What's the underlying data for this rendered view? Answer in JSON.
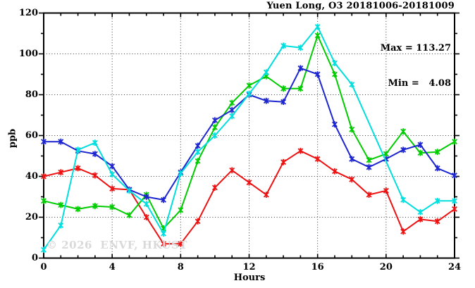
{
  "title": "Yuen Long, O3 20181006-20181009",
  "annotation": {
    "max_label": "Max = 113.27",
    "min_label": "Min =   4.08"
  },
  "watermark": "© 2026  ENVF, HKUST",
  "chart_data": {
    "type": "line",
    "title": "Yuen Long, O3 20181006-20181009",
    "xlabel": "Hours",
    "ylabel": "ppb",
    "xlim": [
      0,
      24
    ],
    "ylim": [
      0,
      120
    ],
    "x_major_ticks": [
      0,
      4,
      8,
      12,
      16,
      20,
      24
    ],
    "y_major_ticks": [
      0,
      20,
      40,
      60,
      80,
      100,
      120
    ],
    "x_minor_step": 1,
    "y_minor_step": 10,
    "x_grid": [
      4,
      8,
      12,
      16,
      20
    ],
    "y_grid": [
      20,
      40,
      60,
      80,
      100
    ],
    "grid_style": "dotted",
    "legend": "none",
    "stat_max": 113.27,
    "stat_min": 4.08,
    "x": [
      0,
      1,
      2,
      3,
      4,
      5,
      6,
      7,
      8,
      9,
      10,
      11,
      12,
      13,
      14,
      15,
      16,
      17,
      18,
      19,
      20,
      21,
      22,
      23,
      24
    ],
    "series": [
      {
        "name": "red-line",
        "color": "#ee1111",
        "values": [
          40,
          42,
          44,
          40.5,
          34,
          33.5,
          20,
          7,
          7,
          18,
          34.5,
          43,
          37,
          31,
          47,
          52.5,
          48.5,
          42.5,
          38.5,
          31,
          33,
          13,
          19,
          18,
          24
        ]
      },
      {
        "name": "green-line",
        "color": "#00cc00",
        "values": [
          28,
          26,
          24,
          25.5,
          25,
          21,
          31,
          14.5,
          23.5,
          47.5,
          64,
          76,
          84.5,
          89,
          83,
          83,
          109,
          90,
          63,
          48,
          51,
          62,
          51.5,
          52,
          57
        ]
      },
      {
        "name": "blue-line",
        "color": "#1c25cf",
        "values": [
          57,
          57,
          52.5,
          51,
          45,
          33.5,
          30,
          28.5,
          42,
          55,
          67.5,
          72.5,
          80,
          77,
          76.5,
          93,
          90,
          65.5,
          48.5,
          44.5,
          48.5,
          53,
          55.5,
          44,
          40.5
        ]
      },
      {
        "name": "cyan-line",
        "color": "#00dede",
        "values": [
          4.08,
          16,
          53,
          56.5,
          41,
          33,
          26.5,
          12,
          41.5,
          52,
          60,
          69.5,
          80.5,
          91,
          104,
          103,
          113.27,
          95.5,
          85,
          null,
          null,
          28.5,
          22.5,
          28,
          28
        ]
      }
    ]
  }
}
